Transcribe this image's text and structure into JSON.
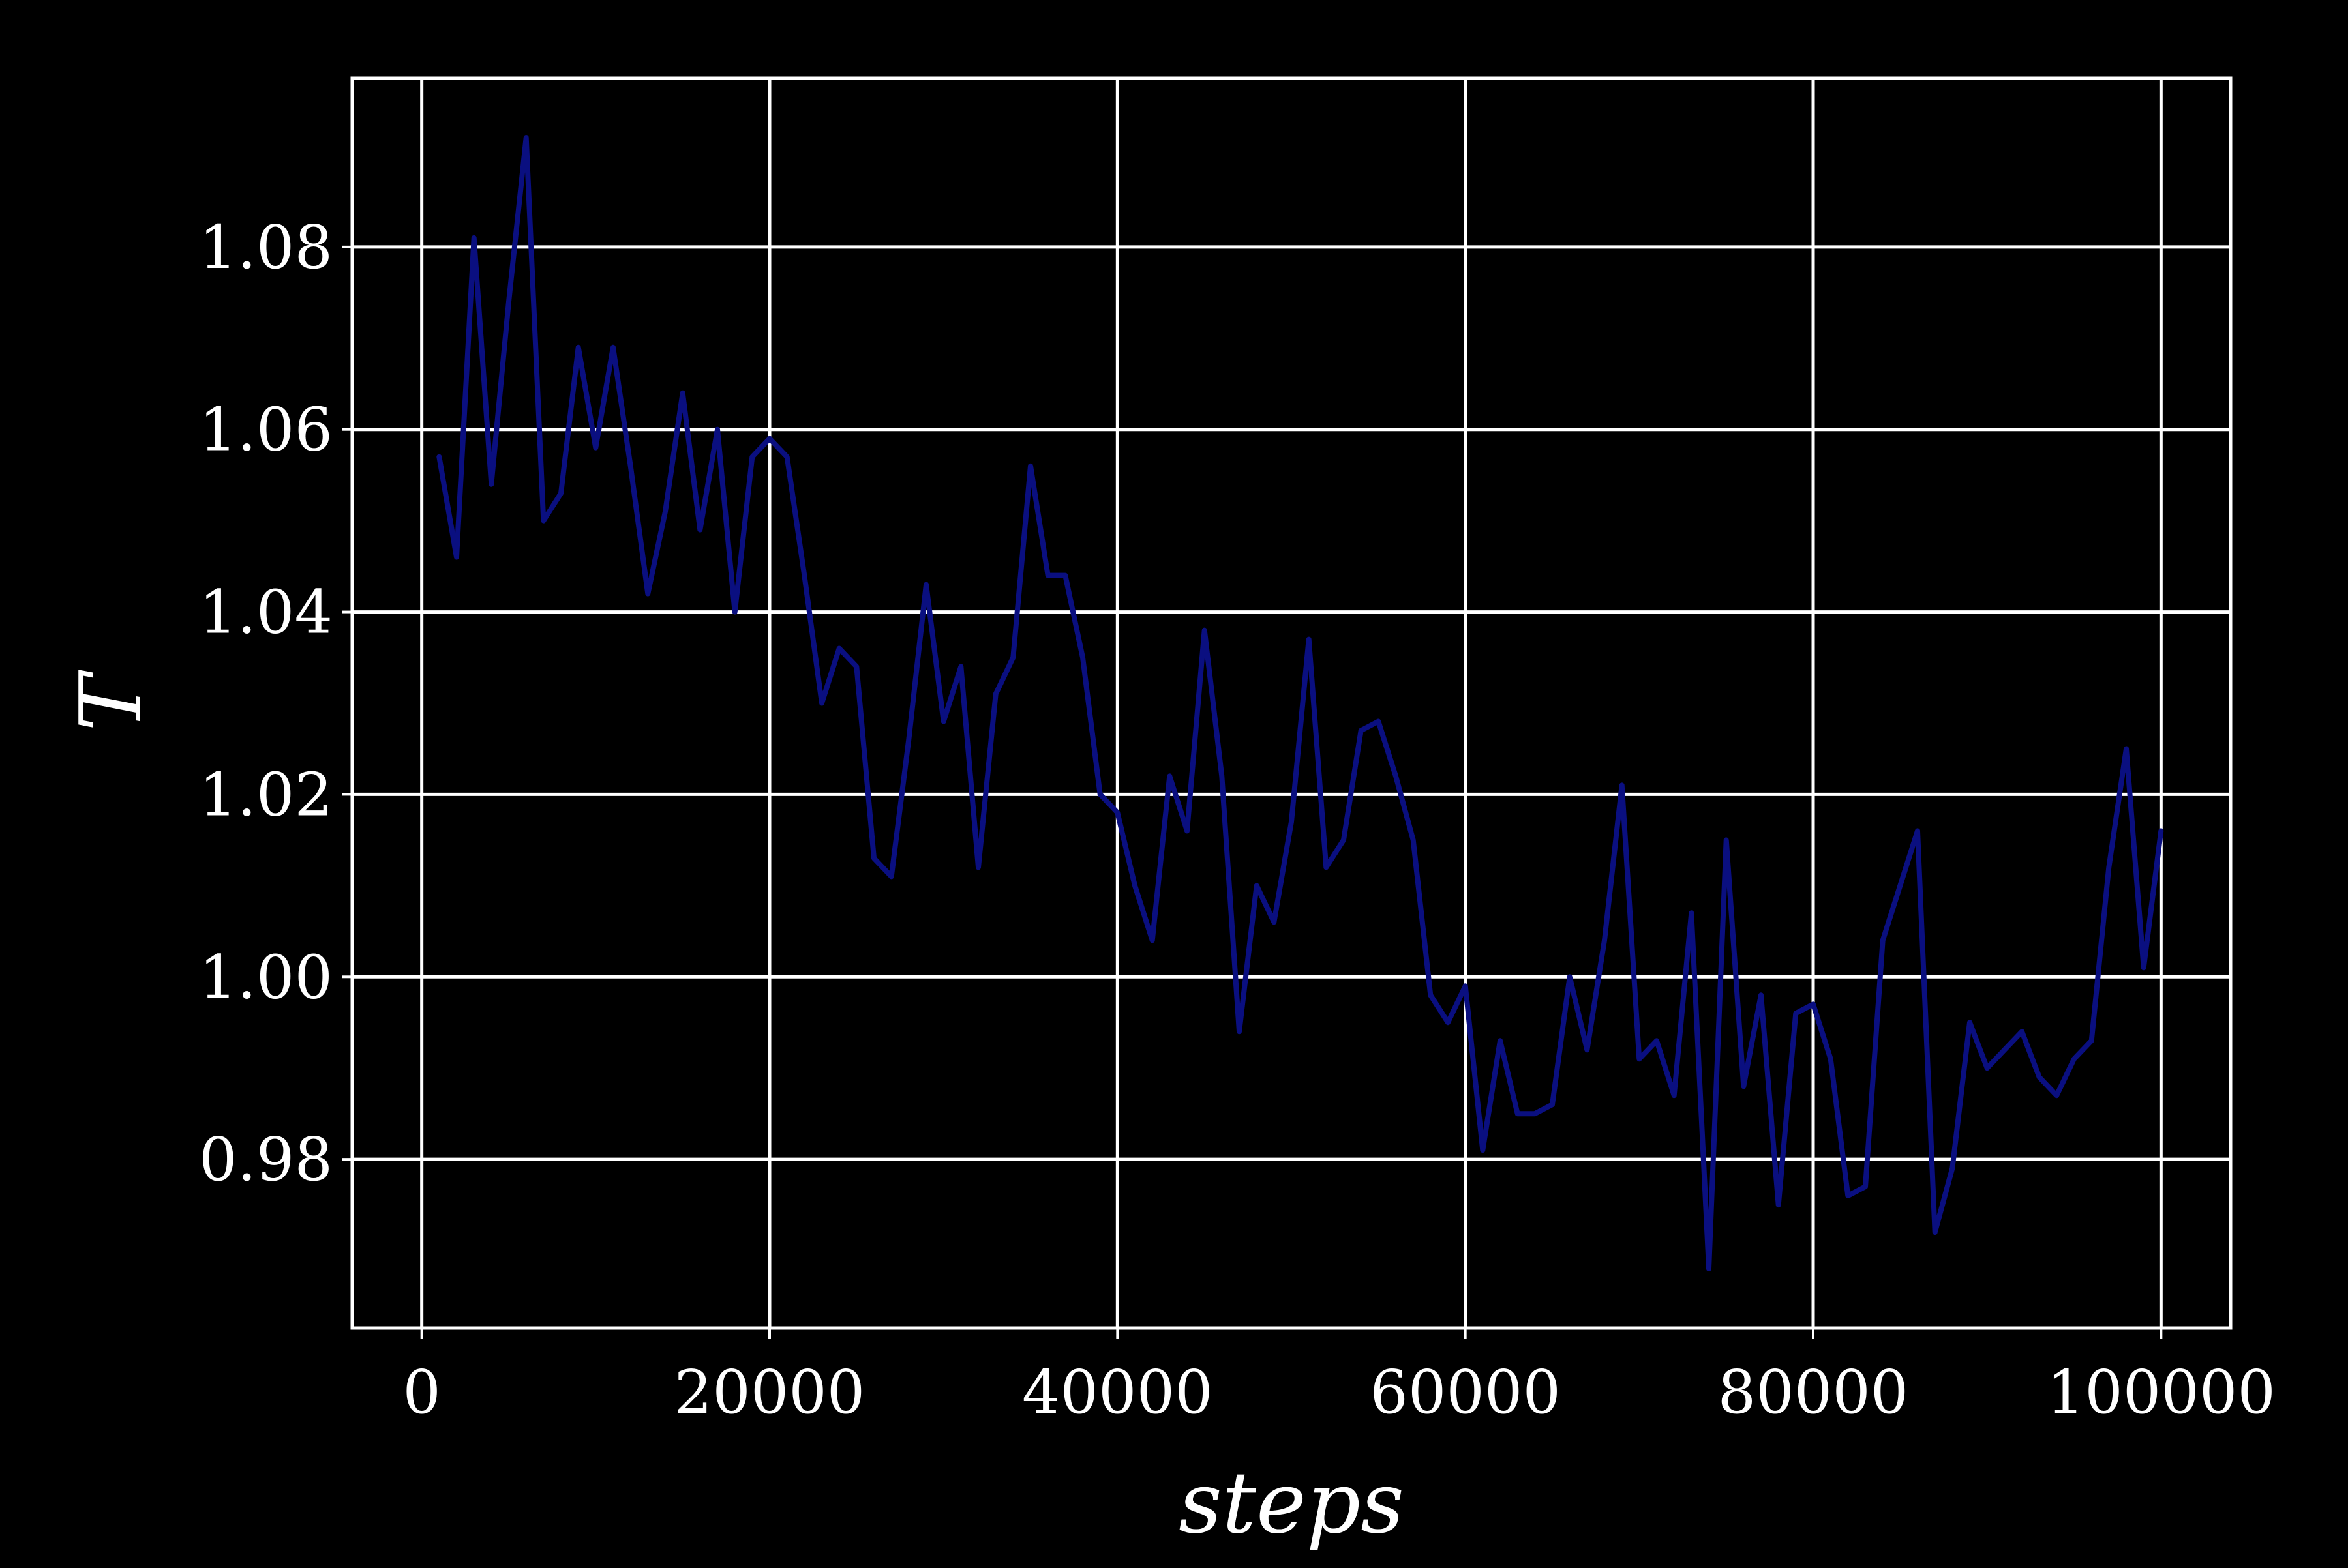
{
  "chart_data": {
    "type": "line",
    "title": "",
    "xlabel": "steps",
    "ylabel": "T",
    "xlim": [
      -4000,
      104000
    ],
    "ylim": [
      0.9615,
      1.0985
    ],
    "xticks": [
      0,
      20000,
      40000,
      60000,
      80000,
      100000
    ],
    "xtick_labels": [
      "0",
      "20000",
      "40000",
      "60000",
      "80000",
      "100000"
    ],
    "yticks": [
      0.98,
      1.0,
      1.02,
      1.04,
      1.06,
      1.08
    ],
    "ytick_labels": [
      "0.98",
      "1.00",
      "1.02",
      "1.04",
      "1.06",
      "1.08"
    ],
    "grid": true,
    "colors": {
      "background": "#000000",
      "grid": "#ffffff",
      "line": "#0a0f80",
      "text": "#ffffff"
    },
    "series": [
      {
        "x": [
          1000,
          2000,
          3000,
          4000,
          5000,
          6000,
          7000,
          8000,
          9000,
          10000,
          11000,
          12000,
          13000,
          14000,
          15000,
          16000,
          17000,
          18000,
          19000,
          20000,
          21000,
          22000,
          23000,
          24000,
          25000,
          26000,
          27000,
          28000,
          29000,
          30000,
          31000,
          32000,
          33000,
          34000,
          35000,
          36000,
          37000,
          38000,
          39000,
          40000,
          41000,
          42000,
          43000,
          44000,
          45000,
          46000,
          47000,
          48000,
          49000,
          50000,
          51000,
          52000,
          53000,
          54000,
          55000,
          56000,
          57000,
          58000,
          59000,
          60000,
          61000,
          62000,
          63000,
          64000,
          65000,
          66000,
          67000,
          68000,
          69000,
          70000,
          71000,
          72000,
          73000,
          74000,
          75000,
          76000,
          77000,
          78000,
          79000,
          80000,
          81000,
          82000,
          83000,
          84000,
          85000,
          86000,
          87000,
          88000,
          89000,
          90000,
          91000,
          92000,
          93000,
          94000,
          95000,
          96000,
          97000,
          98000,
          99000,
          100000
        ],
        "values": [
          1.057,
          1.046,
          1.081,
          1.054,
          1.074,
          1.092,
          1.05,
          1.053,
          1.069,
          1.058,
          1.069,
          1.056,
          1.042,
          1.051,
          1.064,
          1.049,
          1.06,
          1.04,
          1.057,
          1.059,
          1.057,
          1.044,
          1.03,
          1.036,
          1.034,
          1.013,
          1.011,
          1.026,
          1.043,
          1.028,
          1.034,
          1.012,
          1.031,
          1.035,
          1.056,
          1.044,
          1.044,
          1.035,
          1.02,
          1.018,
          1.01,
          1.004,
          1.022,
          1.016,
          1.038,
          1.022,
          0.994,
          1.01,
          1.006,
          1.017,
          1.037,
          1.012,
          1.015,
          1.027,
          1.028,
          1.022,
          1.015,
          0.998,
          0.995,
          0.999,
          0.981,
          0.993,
          0.985,
          0.985,
          0.986,
          1.0,
          0.992,
          1.004,
          1.021,
          0.991,
          0.993,
          0.987,
          1.007,
          0.968,
          1.015,
          0.988,
          0.998,
          0.975,
          0.996,
          0.997,
          0.991,
          0.976,
          0.977,
          1.004,
          1.01,
          1.016,
          0.972,
          0.979,
          0.995,
          0.99,
          0.992,
          0.994,
          0.989,
          0.987,
          0.991,
          0.993,
          1.012,
          1.025,
          1.001,
          1.016
        ]
      }
    ]
  }
}
